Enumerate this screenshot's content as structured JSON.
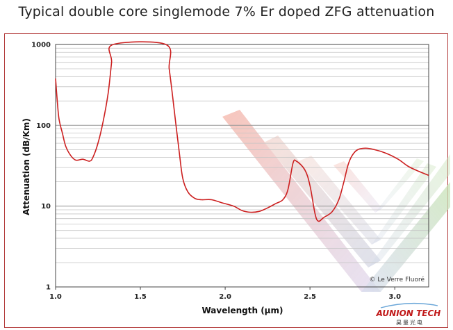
{
  "chart_data": {
    "type": "line",
    "title": "Typical double core singlemode 7% Er doped ZFG attenuation",
    "xlabel": "Wavelength (µm)",
    "ylabel": "Attenuation (dB/Km)",
    "xlim": [
      1.0,
      3.2
    ],
    "ylim": [
      1,
      1000
    ],
    "yscale": "log",
    "grid": true,
    "x_ticks": [
      "1.0",
      "1.5",
      "2.0",
      "2.5",
      "3.0"
    ],
    "y_ticks": [
      "1",
      "10",
      "100",
      "1000"
    ],
    "series": [
      {
        "color": "#cc1f1f",
        "points": [
          [
            1.0,
            380
          ],
          [
            1.01,
            200
          ],
          [
            1.02,
            120
          ],
          [
            1.04,
            80
          ],
          [
            1.06,
            55
          ],
          [
            1.09,
            42
          ],
          [
            1.12,
            37
          ],
          [
            1.16,
            38
          ],
          [
            1.2,
            36
          ],
          [
            1.22,
            40
          ],
          [
            1.25,
            60
          ],
          [
            1.28,
            110
          ],
          [
            1.31,
            250
          ],
          [
            1.33,
            600
          ],
          [
            1.34,
            1000
          ],
          [
            1.65,
            1000
          ],
          [
            1.67,
            500
          ],
          [
            1.69,
            230
          ],
          [
            1.71,
            100
          ],
          [
            1.73,
            45
          ],
          [
            1.75,
            22
          ],
          [
            1.78,
            15
          ],
          [
            1.82,
            12.5
          ],
          [
            1.86,
            12.0
          ],
          [
            1.92,
            12.0
          ],
          [
            1.98,
            11.0
          ],
          [
            2.05,
            10.0
          ],
          [
            2.1,
            8.8
          ],
          [
            2.15,
            8.4
          ],
          [
            2.2,
            8.6
          ],
          [
            2.25,
            9.5
          ],
          [
            2.3,
            10.8
          ],
          [
            2.34,
            12.0
          ],
          [
            2.37,
            16
          ],
          [
            2.4,
            34
          ],
          [
            2.42,
            36
          ],
          [
            2.47,
            28
          ],
          [
            2.5,
            18
          ],
          [
            2.53,
            8.0
          ],
          [
            2.55,
            6.5
          ],
          [
            2.58,
            7.2
          ],
          [
            2.63,
            8.5
          ],
          [
            2.67,
            12
          ],
          [
            2.7,
            20
          ],
          [
            2.73,
            35
          ],
          [
            2.77,
            48
          ],
          [
            2.82,
            52
          ],
          [
            2.88,
            50
          ],
          [
            2.95,
            45
          ],
          [
            3.02,
            38
          ],
          [
            3.08,
            31
          ],
          [
            3.14,
            27
          ],
          [
            3.2,
            24
          ]
        ]
      }
    ]
  },
  "credit": "© Le Verre Fluoré",
  "brand": {
    "name": "AUNION TECH",
    "subtitle": "昊量光电",
    "color": "#c01818"
  }
}
